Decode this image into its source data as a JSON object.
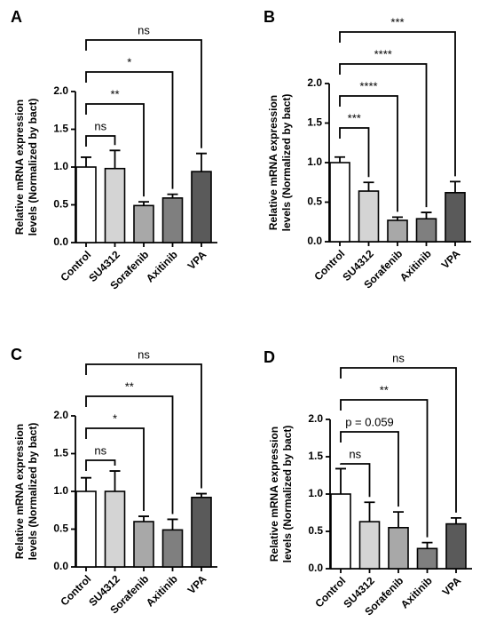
{
  "chart_data": [
    {
      "type": "bar",
      "label": "A",
      "ylabel": [
        "Relative mRNA expression",
        "levels (Normalized by bact)"
      ],
      "categories": [
        "Control",
        "SU4312",
        "Sorafenib",
        "Axitinib",
        "VPA"
      ],
      "values": [
        1.0,
        0.98,
        0.49,
        0.59,
        0.94
      ],
      "errors": [
        0.13,
        0.24,
        0.05,
        0.05,
        0.24
      ],
      "colors": [
        "#ffffff",
        "#d4d4d4",
        "#a8a8a8",
        "#7f7f7f",
        "#5a5a5a"
      ],
      "ylim": [
        0,
        2
      ],
      "yticks": [
        {
          "value": 0,
          "label": "0.0"
        },
        {
          "value": 0.5,
          "label": "0.5"
        },
        {
          "value": 1,
          "label": "1.0"
        },
        {
          "value": 1.5,
          "label": "1.5"
        },
        {
          "value": 2,
          "label": "2.0"
        }
      ],
      "comparisons": [
        {
          "pair": [
            "Control",
            "SU4312"
          ],
          "label": "ns"
        },
        {
          "pair": [
            "Control",
            "Sorafenib"
          ],
          "label": "**"
        },
        {
          "pair": [
            "Control",
            "Axitinib"
          ],
          "label": "*"
        },
        {
          "pair": [
            "Control",
            "VPA"
          ],
          "label": "ns"
        }
      ]
    },
    {
      "type": "bar",
      "label": "B",
      "ylabel": [
        "Relative mRNA expression",
        "levels (Normalized by bact)"
      ],
      "categories": [
        "Control",
        "SU4312",
        "Sorafenib",
        "Axitinib",
        "VPA"
      ],
      "values": [
        1.0,
        0.64,
        0.27,
        0.29,
        0.62
      ],
      "errors": [
        0.07,
        0.11,
        0.04,
        0.08,
        0.14
      ],
      "colors": [
        "#ffffff",
        "#d4d4d4",
        "#a8a8a8",
        "#7f7f7f",
        "#5a5a5a"
      ],
      "ylim": [
        0,
        2
      ],
      "yticks": [
        {
          "value": 0,
          "label": "0.0"
        },
        {
          "value": 0.5,
          "label": "0.5"
        },
        {
          "value": 1,
          "label": "1.0"
        },
        {
          "value": 1.5,
          "label": "1.5"
        },
        {
          "value": 2,
          "label": "2.0"
        }
      ],
      "comparisons": [
        {
          "pair": [
            "Control",
            "SU4312"
          ],
          "label": "***"
        },
        {
          "pair": [
            "Control",
            "Sorafenib"
          ],
          "label": "****"
        },
        {
          "pair": [
            "Control",
            "Axitinib"
          ],
          "label": "****"
        },
        {
          "pair": [
            "Control",
            "VPA"
          ],
          "label": "***"
        }
      ]
    },
    {
      "type": "bar",
      "label": "C",
      "ylabel": [
        "Relative mRNA expression",
        "levels (Normalized by bact)"
      ],
      "categories": [
        "Control",
        "SU4312",
        "Sorafenib",
        "Axitinib",
        "VPA"
      ],
      "values": [
        1.0,
        1.0,
        0.6,
        0.49,
        0.92
      ],
      "errors": [
        0.18,
        0.27,
        0.07,
        0.14,
        0.05
      ],
      "colors": [
        "#ffffff",
        "#d4d4d4",
        "#a8a8a8",
        "#7f7f7f",
        "#5a5a5a"
      ],
      "ylim": [
        0,
        2
      ],
      "yticks": [
        {
          "value": 0,
          "label": "0.0"
        },
        {
          "value": 0.5,
          "label": "0.5"
        },
        {
          "value": 1,
          "label": "1.0"
        },
        {
          "value": 1.5,
          "label": "1.5"
        },
        {
          "value": 2,
          "label": "2.0"
        }
      ],
      "comparisons": [
        {
          "pair": [
            "Control",
            "SU4312"
          ],
          "label": "ns"
        },
        {
          "pair": [
            "Control",
            "Sorafenib"
          ],
          "label": "*"
        },
        {
          "pair": [
            "Control",
            "Axitinib"
          ],
          "label": "**"
        },
        {
          "pair": [
            "Control",
            "VPA"
          ],
          "label": "ns"
        }
      ]
    },
    {
      "type": "bar",
      "label": "D",
      "ylabel": [
        "Relative mRNA expression",
        "levels (Normalized by bact)"
      ],
      "categories": [
        "Control",
        "SU4312",
        "Sorafenib",
        "Axitinib",
        "VPA"
      ],
      "values": [
        1.0,
        0.63,
        0.55,
        0.27,
        0.6
      ],
      "errors": [
        0.34,
        0.26,
        0.21,
        0.08,
        0.08
      ],
      "colors": [
        "#ffffff",
        "#d4d4d4",
        "#a8a8a8",
        "#7f7f7f",
        "#5a5a5a"
      ],
      "ylim": [
        0,
        2
      ],
      "yticks": [
        {
          "value": 0,
          "label": "0.0"
        },
        {
          "value": 0.5,
          "label": "0.5"
        },
        {
          "value": 1,
          "label": "1.0"
        },
        {
          "value": 1.5,
          "label": "1.5"
        },
        {
          "value": 2,
          "label": "2.0"
        }
      ],
      "comparisons": [
        {
          "pair": [
            "Control",
            "SU4312"
          ],
          "label": "ns"
        },
        {
          "pair": [
            "Control",
            "Sorafenib"
          ],
          "label": "p = 0.059"
        },
        {
          "pair": [
            "Control",
            "Axitinib"
          ],
          "label": "**"
        },
        {
          "pair": [
            "Control",
            "VPA"
          ],
          "label": "ns"
        }
      ]
    }
  ]
}
